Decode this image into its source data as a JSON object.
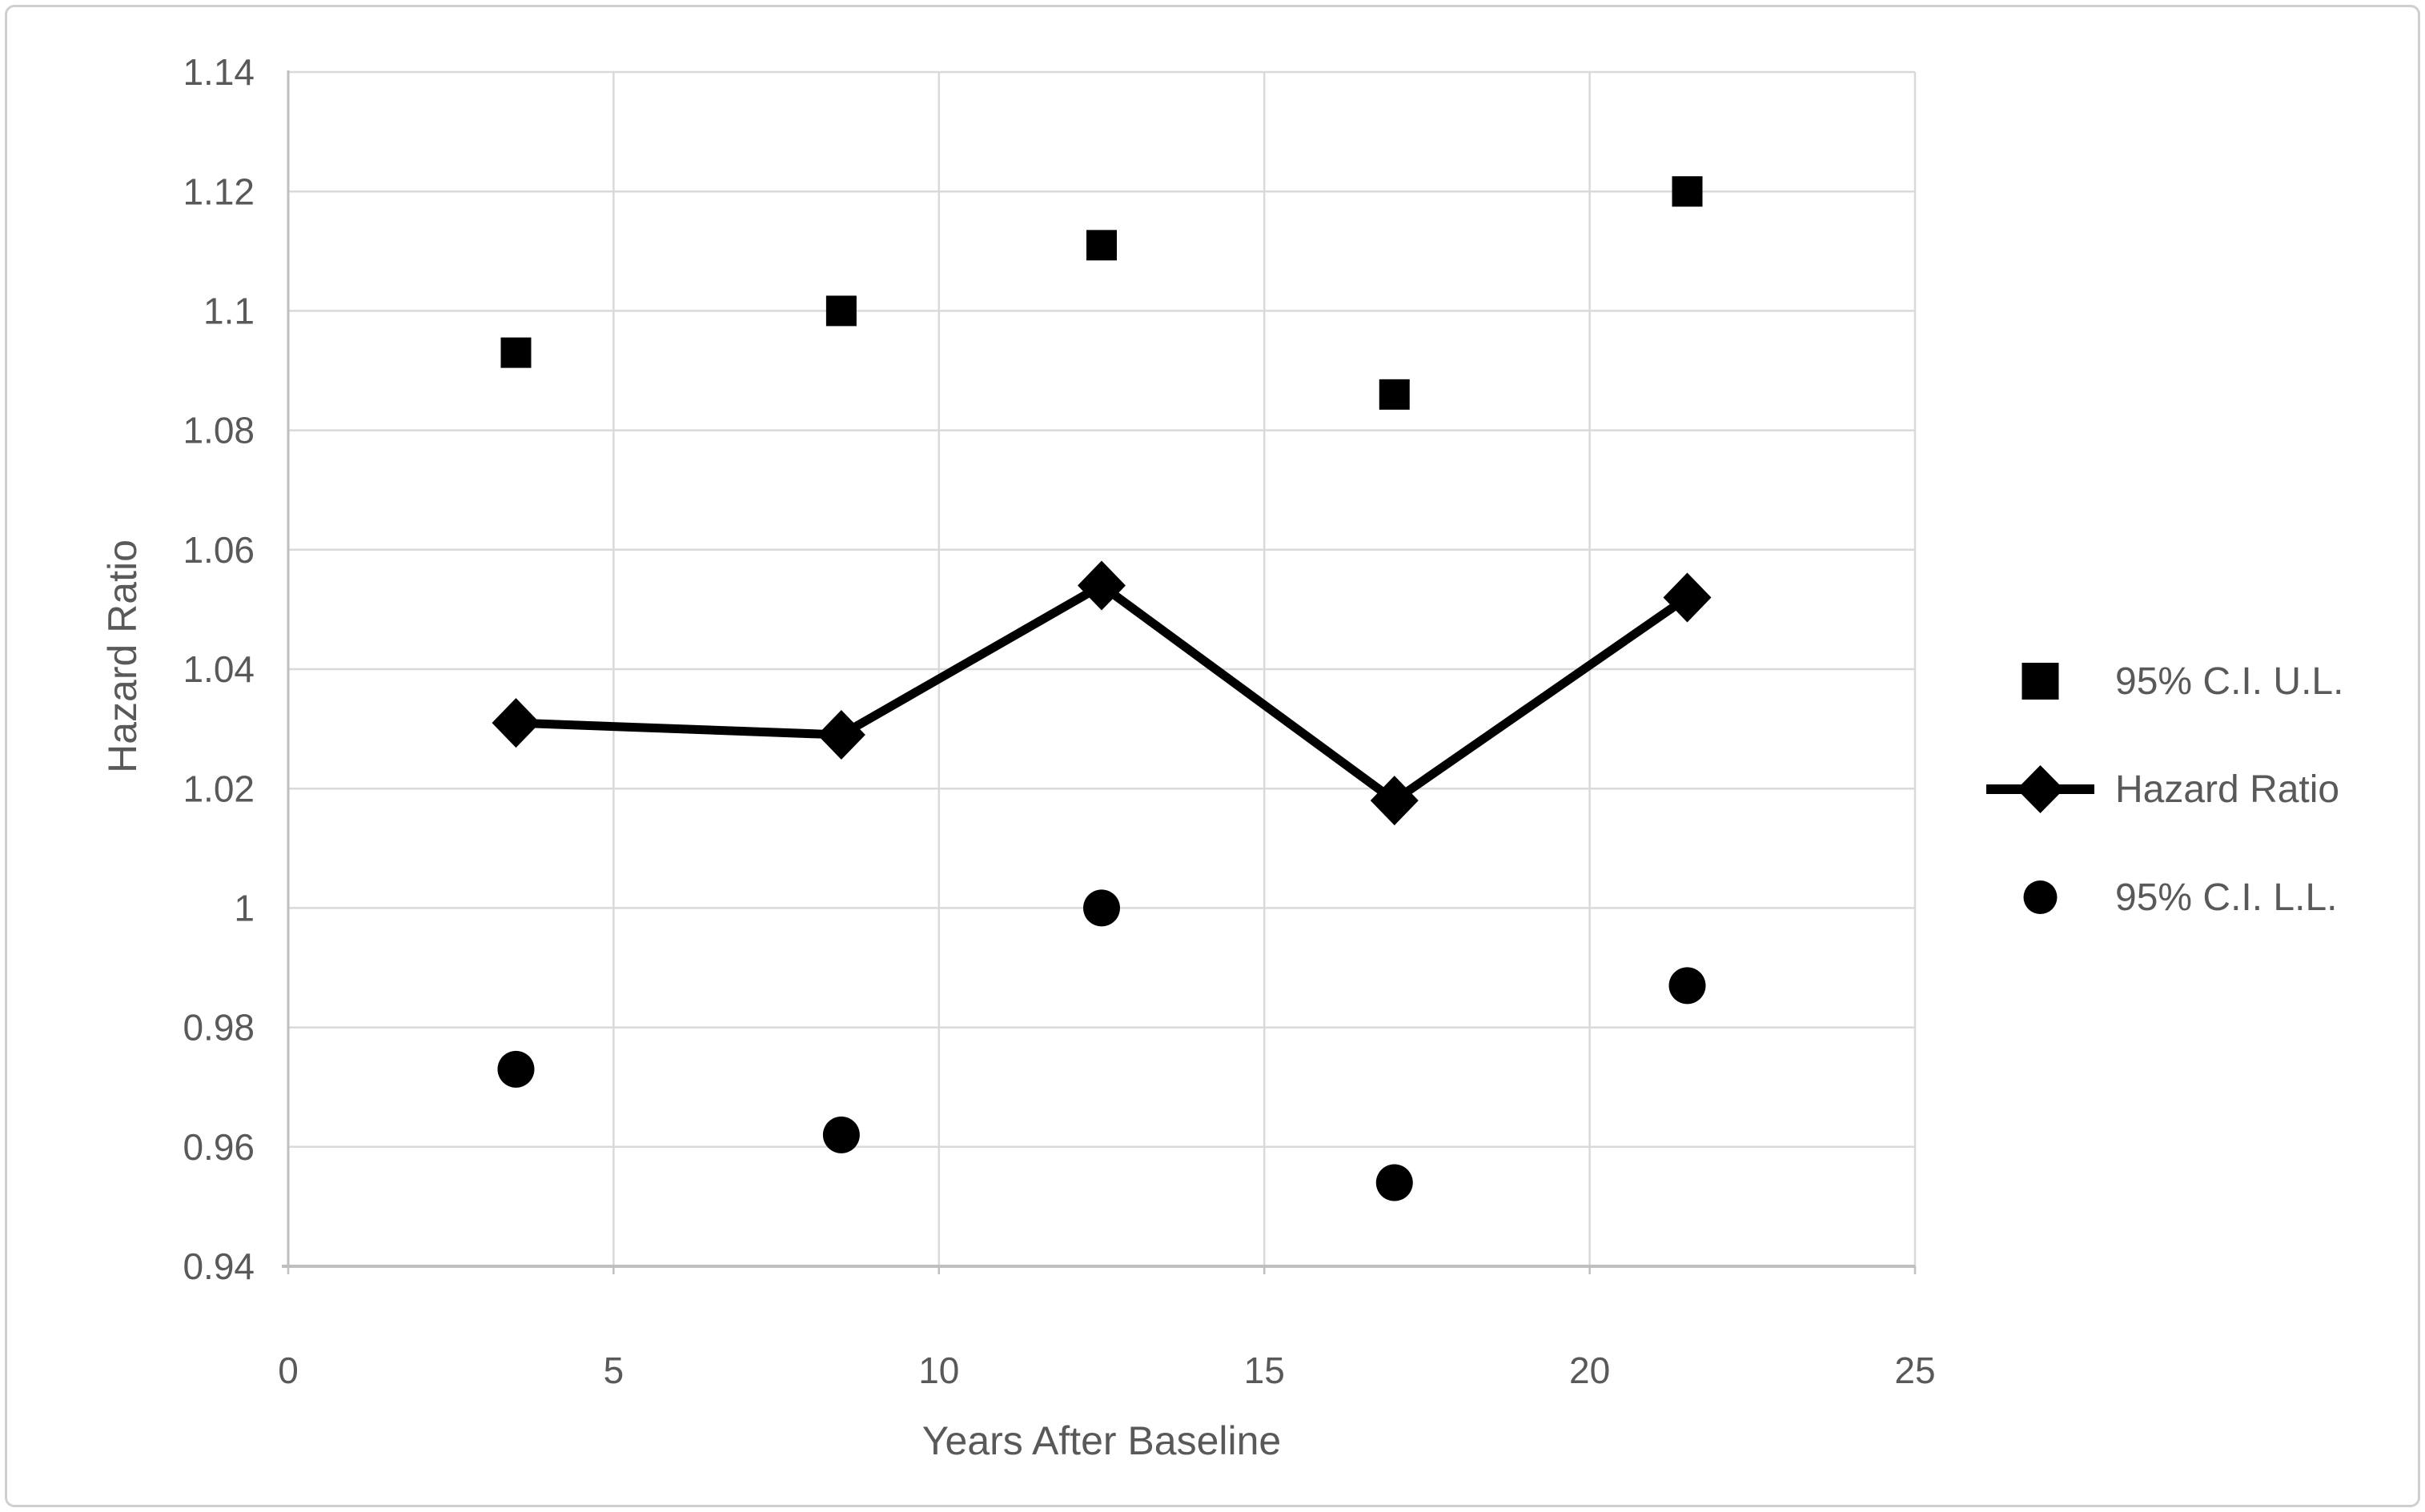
{
  "figure": {
    "background": "#ffffff",
    "border_color": "#cfcfcf"
  },
  "chart_data": {
    "type": "scatter",
    "title": "",
    "xlabel": "Years After Baseline",
    "ylabel": "Hazard Ratio",
    "xlim": [
      0,
      25
    ],
    "ylim": [
      0.94,
      1.14
    ],
    "x_ticks": [
      0,
      5,
      10,
      15,
      20,
      25
    ],
    "x_tick_labels": [
      "0",
      "5",
      "10",
      "15",
      "20",
      "25"
    ],
    "y_ticks": [
      1.14,
      1.12,
      1.1,
      1.08,
      1.06,
      1.04,
      1.02,
      1.0,
      0.98,
      0.96,
      0.94
    ],
    "y_tick_labels": [
      "1.14",
      "1.12",
      "1.1",
      "1.08",
      "1.06",
      "1.04",
      "1.02",
      "1",
      "0.98",
      "0.96",
      "0.94"
    ],
    "grid": true,
    "legend_position": "right",
    "x": [
      3.5,
      8.5,
      12.5,
      17,
      21.5
    ],
    "series": [
      {
        "name": "95% C.I. U.L.",
        "marker": "square",
        "line": false,
        "values": [
          1.093,
          1.1,
          1.111,
          1.086,
          1.12
        ]
      },
      {
        "name": "Hazard Ratio",
        "marker": "diamond",
        "line": true,
        "values": [
          1.031,
          1.029,
          1.054,
          1.018,
          1.052
        ]
      },
      {
        "name": "95% C.I. L.L.",
        "marker": "circle",
        "line": false,
        "values": [
          0.973,
          0.962,
          1.0,
          0.954,
          0.987
        ]
      }
    ],
    "colors": {
      "marker": "#000000",
      "line": "#000000",
      "gridline": "#d9d9d9",
      "axis_line": "#bfbfbf",
      "tick_label": "#595959",
      "axis_title": "#595959"
    }
  }
}
